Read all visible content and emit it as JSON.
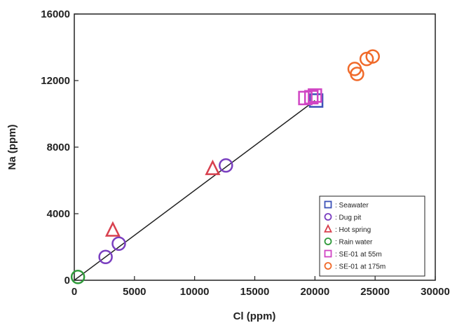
{
  "chart_data": {
    "type": "scatter",
    "title": "",
    "xlabel": "Cl (ppm)",
    "ylabel": "Na (ppm)",
    "xlim": [
      0,
      30000
    ],
    "ylim": [
      0,
      16000
    ],
    "xticks": [
      "0",
      "5000",
      "10000",
      "15000",
      "20000",
      "25000",
      "30000"
    ],
    "yticks": [
      "0",
      "4000",
      "8000",
      "12000",
      "16000"
    ],
    "grid": false,
    "legend_position": "bottom-right",
    "series": [
      {
        "name": ": Seawater",
        "marker": "square",
        "color": "#3d52b8",
        "points": [
          [
            20100,
            10800
          ]
        ]
      },
      {
        "name": ": Dug pit",
        "marker": "circle",
        "color": "#7a3fc0",
        "points": [
          [
            2600,
            1400
          ],
          [
            3700,
            2200
          ],
          [
            12600,
            6900
          ]
        ]
      },
      {
        "name": ": Hot spring",
        "marker": "triangle",
        "color": "#d8404e",
        "points": [
          [
            3200,
            3000
          ],
          [
            11500,
            6700
          ]
        ]
      },
      {
        "name": ": Rain water",
        "marker": "circle",
        "color": "#2f9a3a",
        "points": [
          [
            300,
            200
          ]
        ]
      },
      {
        "name": ": SE-01 at 55m",
        "marker": "square",
        "color": "#d045c4",
        "points": [
          [
            19200,
            10950
          ],
          [
            19700,
            11000
          ],
          [
            20000,
            11100
          ]
        ]
      },
      {
        "name": ": SE-01 at 175m",
        "marker": "circle",
        "color": "#f06a2a",
        "points": [
          [
            23300,
            12700
          ],
          [
            23500,
            12400
          ],
          [
            24300,
            13300
          ],
          [
            24800,
            13450
          ]
        ]
      }
    ],
    "trend_line": {
      "points": [
        [
          0,
          0
        ],
        [
          20000,
          10800
        ]
      ],
      "color": "#222222"
    }
  }
}
